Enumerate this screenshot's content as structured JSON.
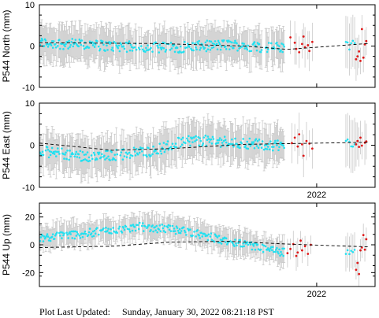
{
  "chart_data": [
    {
      "type": "scatter",
      "ylabel": "P544 North (mm)",
      "ylim": [
        -10,
        10
      ],
      "yticks": [
        -10,
        0,
        10
      ],
      "xlim": [
        2020.1,
        2022.4
      ],
      "xtick_labels": [
        {
          "value": 2022.0,
          "label": ""
        }
      ],
      "series": [
        {
          "color": "#22e0f0",
          "trend": [
            [
              2020.1,
              0.8
            ],
            [
              2020.6,
              0.0
            ],
            [
              2021.0,
              -0.4
            ],
            [
              2021.4,
              0.3
            ],
            [
              2021.8,
              -0.6
            ],
            [
              2022.3,
              0.6
            ]
          ],
          "scatter": 1.3,
          "error": 4.5
        },
        {
          "color": "#e01818",
          "points": [
            [
              2021.82,
              2.1
            ],
            [
              2021.85,
              0.8
            ],
            [
              2021.86,
              -0.7
            ],
            [
              2021.88,
              -1.5
            ],
            [
              2021.9,
              0.5
            ],
            [
              2021.91,
              2.3
            ],
            [
              2021.92,
              -0.3
            ],
            [
              2021.94,
              0.2
            ],
            [
              2021.95,
              -1.2
            ],
            [
              2021.97,
              1.0
            ],
            [
              2022.27,
              -3.2
            ],
            [
              2022.28,
              -2.5
            ],
            [
              2022.29,
              -1.3
            ],
            [
              2022.3,
              -3.6
            ],
            [
              2022.31,
              4.1
            ],
            [
              2022.32,
              -2.8
            ],
            [
              2022.33,
              0.4
            ],
            [
              2022.34,
              1.2
            ]
          ]
        }
      ],
      "trend_line": [
        [
          2020.1,
          0.8
        ],
        [
          2020.9,
          0.6
        ],
        [
          2021.5,
          0.0
        ],
        [
          2021.8,
          -0.8
        ],
        [
          2022.35,
          0.6
        ]
      ]
    },
    {
      "type": "scatter",
      "ylabel": "P544 East (mm)",
      "ylim": [
        -10,
        10
      ],
      "yticks": [
        -10,
        0,
        10
      ],
      "xlim": [
        2020.1,
        2022.4
      ],
      "xtick_labels": [
        {
          "value": 2022.0,
          "label": "2022"
        }
      ],
      "series": [
        {
          "color": "#22e0f0",
          "trend": [
            [
              2020.1,
              -1.5
            ],
            [
              2020.5,
              -2.8
            ],
            [
              2020.9,
              -1.2
            ],
            [
              2021.1,
              1.2
            ],
            [
              2021.4,
              0.8
            ],
            [
              2021.8,
              -0.3
            ],
            [
              2022.3,
              0.8
            ]
          ],
          "scatter": 1.3,
          "error": 4.5
        },
        {
          "color": "#e01818",
          "points": [
            [
              2021.83,
              0.5
            ],
            [
              2021.85,
              1.8
            ],
            [
              2021.87,
              -0.3
            ],
            [
              2021.88,
              2.6
            ],
            [
              2021.9,
              0.2
            ],
            [
              2021.91,
              -2.5
            ],
            [
              2021.93,
              1.0
            ],
            [
              2021.95,
              0.4
            ],
            [
              2021.97,
              -0.8
            ],
            [
              2022.27,
              0.2
            ],
            [
              2022.28,
              1.0
            ],
            [
              2022.29,
              -0.4
            ],
            [
              2022.3,
              1.8
            ],
            [
              2022.31,
              -0.1
            ],
            [
              2022.33,
              0.6
            ],
            [
              2022.34,
              0.9
            ]
          ]
        }
      ],
      "trend_line": [
        [
          2020.1,
          0.5
        ],
        [
          2020.6,
          -1.2
        ],
        [
          2021.0,
          -0.8
        ],
        [
          2021.5,
          0.2
        ],
        [
          2022.35,
          0.7
        ]
      ]
    },
    {
      "type": "scatter",
      "ylabel": "P544 Up (mm)",
      "ylim": [
        -30,
        30
      ],
      "yticks": [
        -20,
        0,
        20
      ],
      "xlim": [
        2020.1,
        2022.4
      ],
      "xtick_labels": [
        {
          "value": 2022.0,
          "label": "2022"
        }
      ],
      "series": [
        {
          "color": "#22e0f0",
          "trend": [
            [
              2020.1,
              5.0
            ],
            [
              2020.4,
              8.0
            ],
            [
              2020.8,
              13.0
            ],
            [
              2021.1,
              10.0
            ],
            [
              2021.4,
              2.0
            ],
            [
              2021.8,
              -6.0
            ],
            [
              2022.3,
              -4.0
            ]
          ],
          "scatter": 3.0,
          "error": 9.0
        },
        {
          "color": "#e01818",
          "points": [
            [
              2021.8,
              -6.0
            ],
            [
              2021.82,
              -3.0
            ],
            [
              2021.84,
              0.5
            ],
            [
              2021.86,
              -8.0
            ],
            [
              2021.87,
              -5.5
            ],
            [
              2021.89,
              3.0
            ],
            [
              2021.9,
              -4.0
            ],
            [
              2021.92,
              -1.0
            ],
            [
              2021.94,
              -6.5
            ],
            [
              2021.96,
              0.0
            ],
            [
              2022.27,
              -18.0
            ],
            [
              2022.28,
              -13.0
            ],
            [
              2022.29,
              -21.0
            ],
            [
              2022.3,
              -4.0
            ],
            [
              2022.31,
              -2.0
            ],
            [
              2022.32,
              7.0
            ],
            [
              2022.33,
              -3.5
            ],
            [
              2022.34,
              4.0
            ]
          ]
        }
      ],
      "trend_line": [
        [
          2020.1,
          -2.0
        ],
        [
          2020.6,
          -1.0
        ],
        [
          2021.0,
          2.0
        ],
        [
          2021.4,
          2.5
        ],
        [
          2021.8,
          0.5
        ],
        [
          2022.35,
          -1.5
        ]
      ]
    }
  ],
  "footer": {
    "label": "Plot Last Updated:",
    "timestamp": "Sunday, January 30, 2022 08:21:18 PST"
  }
}
